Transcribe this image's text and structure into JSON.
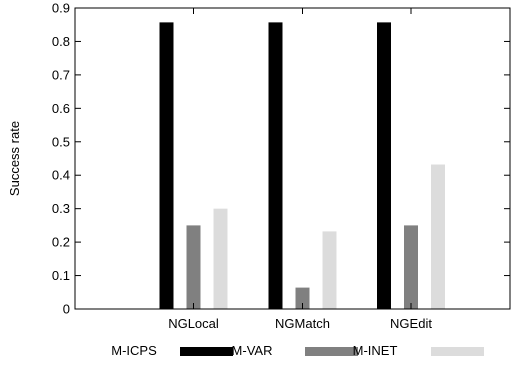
{
  "chart_data": {
    "type": "bar",
    "categories": [
      "NGLocal",
      "NGMatch",
      "NGEdit"
    ],
    "series": [
      {
        "name": "M-ICPS",
        "values": [
          0,
          0,
          0
        ],
        "color": "#ffffff"
      },
      {
        "name": "M-VAR",
        "values": [
          0.857,
          0.857,
          0.857
        ],
        "color": "#000000"
      },
      {
        "name": "M-INET",
        "values": [
          0.25,
          0.064,
          0.25
        ],
        "color": "#808080"
      },
      {
        "name": "",
        "values": [
          0.3,
          0.232,
          0.432
        ],
        "color": "#dcdcdc"
      }
    ],
    "ylabel": "Success rate",
    "xlabel": "",
    "title": "",
    "ylim": [
      0,
      0.9
    ],
    "yticks": [
      "0",
      "0.1",
      "0.2",
      "0.3",
      "0.4",
      "0.5",
      "0.6",
      "0.7",
      "0.8",
      "0.9"
    ],
    "grid": false,
    "legend_position": "bottom"
  }
}
